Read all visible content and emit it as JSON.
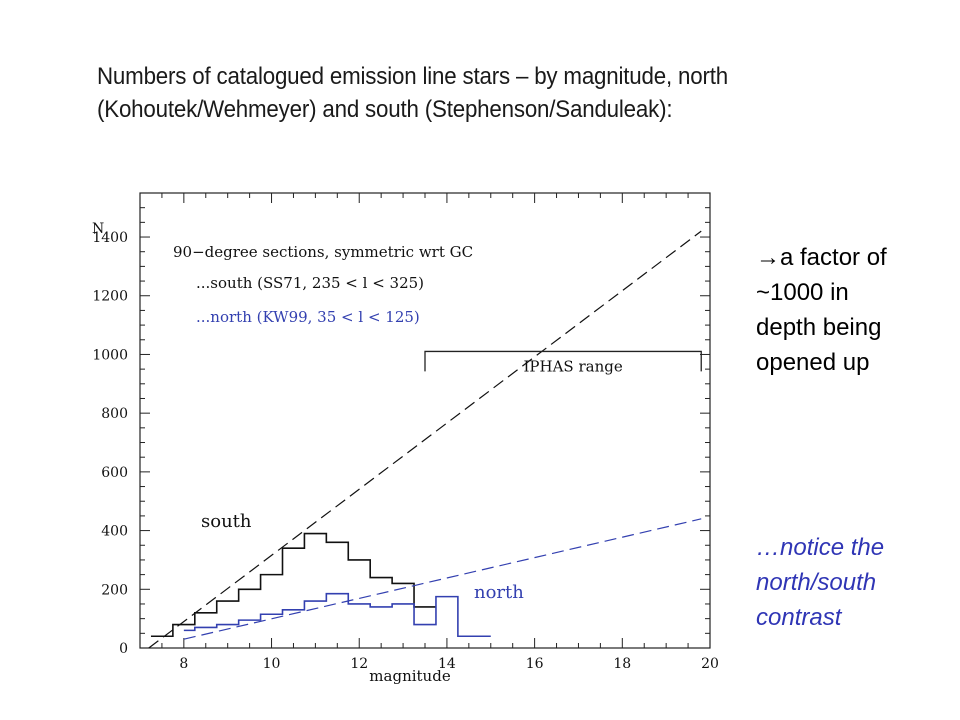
{
  "title_lines": [
    "Numbers of catalogued emission line stars – by magnitude, north",
    "(Kohoutek/Wehmeyer) and south (Stephenson/Sanduleak):"
  ],
  "note_black_lines": [
    "→a factor of",
    "~1000 in",
    "depth being",
    "opened up"
  ],
  "note_blue_lines": [
    "…notice the",
    "north/south",
    "contrast"
  ],
  "colors": {
    "south": "#111111",
    "north": "#3340b0",
    "note_blue": "#2f35b5"
  },
  "chart_data": {
    "type": "line",
    "xlabel": "magnitude",
    "ylabel": "N",
    "xlim": [
      7,
      20
    ],
    "ylim": [
      0,
      1550
    ],
    "xticks": [
      8,
      10,
      12,
      14,
      16,
      18,
      20
    ],
    "yticks": [
      0,
      200,
      400,
      600,
      800,
      1000,
      1200,
      1400
    ],
    "legend": {
      "header": "90−degree sections, symmetric wrt GC",
      "entries": [
        {
          "label": "...south (SS71, 235 < l < 325)",
          "color": "#111111"
        },
        {
          "label": "...north (KW99, 35 < l < 125)",
          "color": "#3340b0"
        }
      ]
    },
    "series": [
      {
        "name": "south",
        "style": "step",
        "color": "#111111",
        "edges": [
          7.25,
          7.75,
          8.25,
          8.75,
          9.25,
          9.75,
          10.25,
          10.75,
          11.25,
          11.75,
          12.25,
          12.75,
          13.25,
          13.75
        ],
        "values": [
          40,
          80,
          120,
          160,
          200,
          250,
          340,
          390,
          360,
          300,
          240,
          220,
          140
        ]
      },
      {
        "name": "north",
        "style": "step",
        "color": "#3340b0",
        "edges": [
          8.0,
          8.25,
          8.75,
          9.25,
          9.75,
          10.25,
          10.75,
          11.25,
          11.75,
          12.25,
          12.75,
          13.25,
          13.75,
          14.25,
          14.75,
          15.0
        ],
        "values": [
          60,
          70,
          80,
          95,
          115,
          130,
          160,
          185,
          150,
          140,
          150,
          80,
          175,
          40,
          40
        ]
      },
      {
        "name": "",
        "style": "dashed-line",
        "color": "#111111",
        "x": [
          7.2,
          19.8
        ],
        "y": [
          0,
          1420
        ]
      },
      {
        "name": "",
        "style": "dashed-line",
        "color": "#3340b0",
        "x": [
          8.0,
          19.8
        ],
        "y": [
          30,
          440
        ]
      }
    ],
    "annotations": [
      {
        "text": "IPHAS range",
        "x_range": [
          13.5,
          19.8
        ],
        "y": 840
      },
      {
        "text": "south",
        "x": 9.3,
        "y": 430,
        "color": "#111111"
      },
      {
        "text": "north",
        "x": 15.6,
        "y": 150,
        "color": "#3340b0"
      }
    ]
  }
}
